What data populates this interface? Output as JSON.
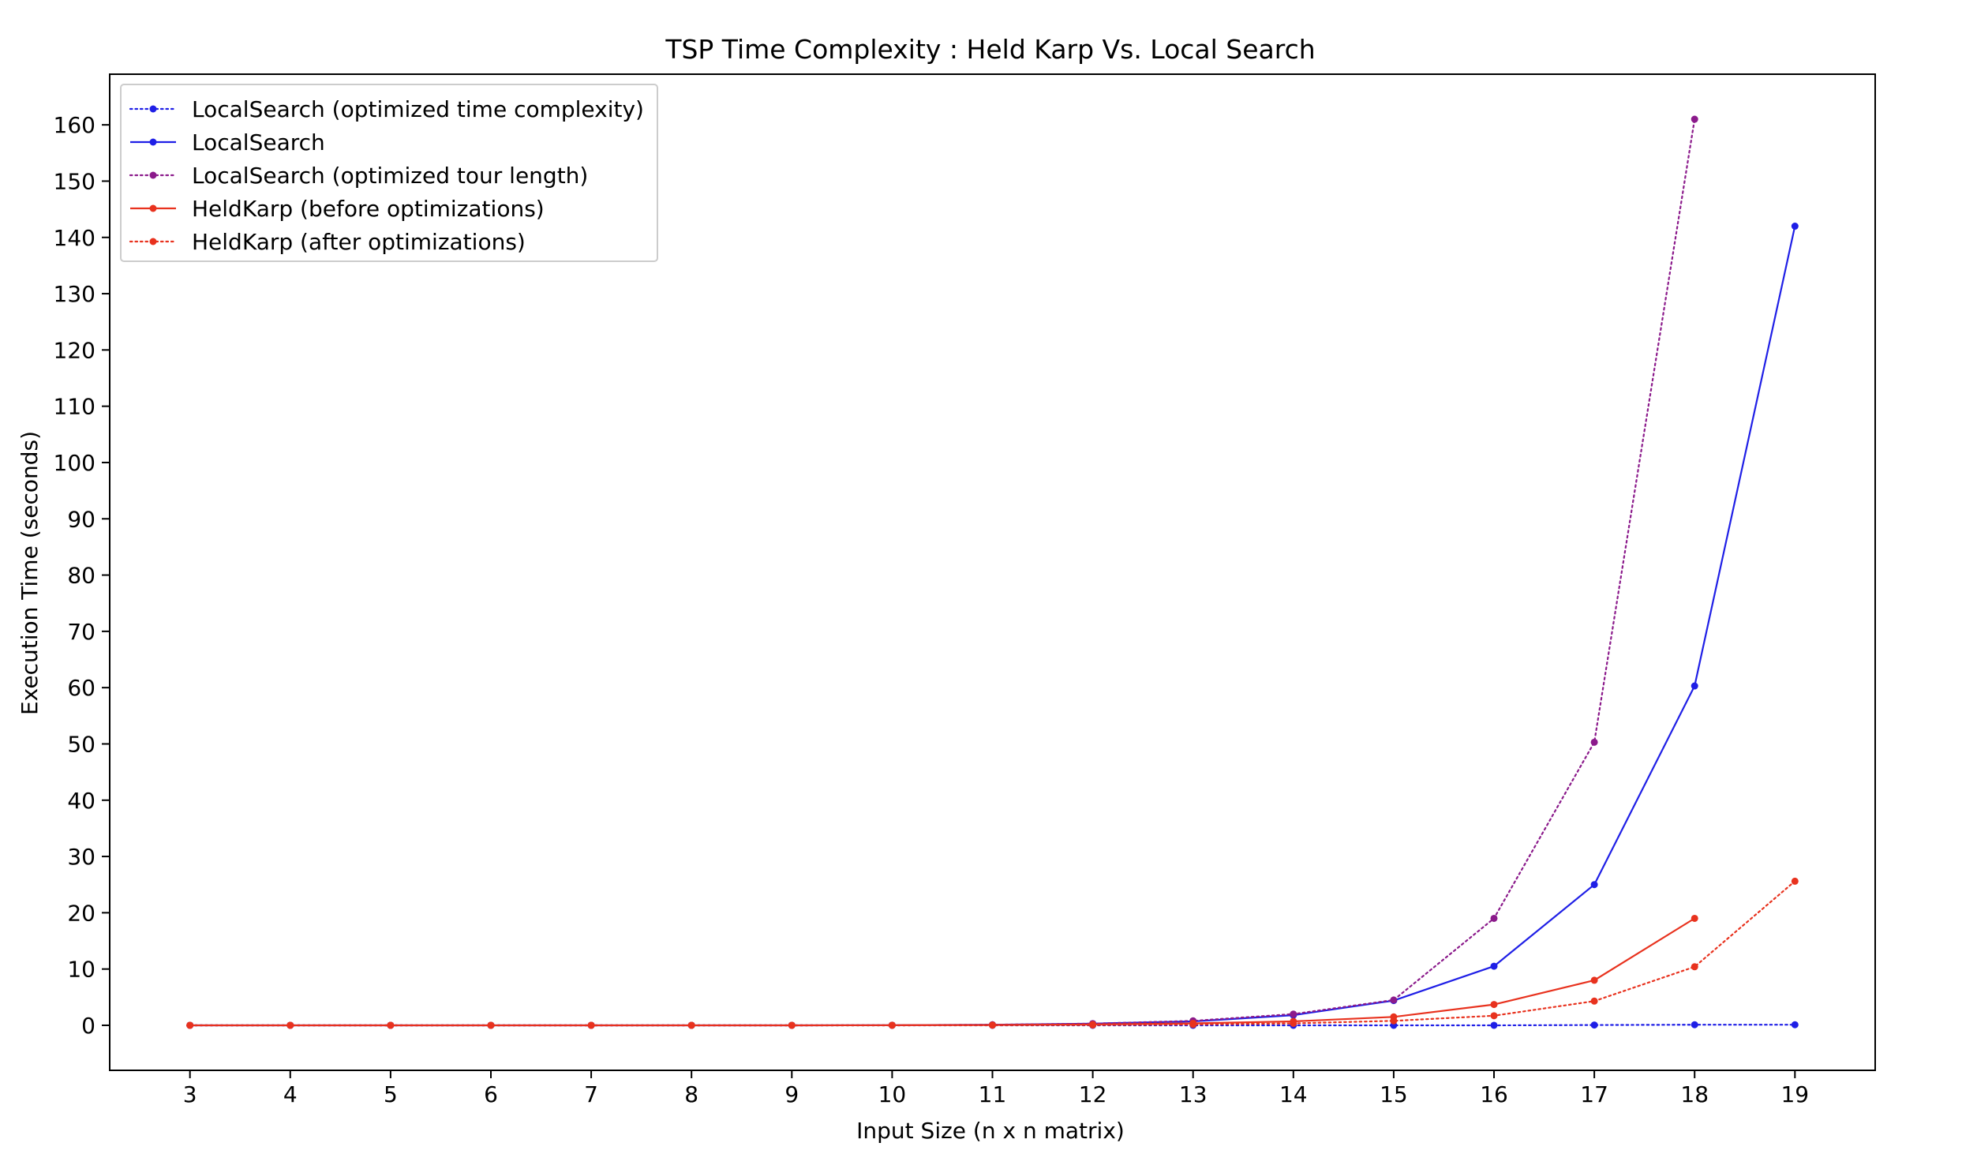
{
  "chart_data": {
    "type": "line",
    "title": "TSP Time Complexity : Held Karp Vs. Local Search",
    "xlabel": "Input Size (n x n matrix)",
    "ylabel": "Execution Time (seconds)",
    "x": [
      3,
      4,
      5,
      6,
      7,
      8,
      9,
      10,
      11,
      12,
      13,
      14,
      15,
      16,
      17,
      18,
      19
    ],
    "x_ticks": [
      "3",
      "4",
      "5",
      "6",
      "7",
      "8",
      "9",
      "10",
      "11",
      "12",
      "13",
      "14",
      "15",
      "16",
      "17",
      "18",
      "19"
    ],
    "xlim": [
      2.2,
      19.8
    ],
    "ylim": [
      -8,
      169
    ],
    "y_ticks": [
      0,
      10,
      20,
      30,
      40,
      50,
      60,
      70,
      80,
      90,
      100,
      110,
      120,
      130,
      140,
      150,
      160
    ],
    "y_tick_labels": [
      "0",
      "10",
      "20",
      "30",
      "40",
      "50",
      "60",
      "70",
      "80",
      "90",
      "100",
      "110",
      "120",
      "130",
      "140",
      "150",
      "160"
    ],
    "grid": false,
    "legend_position": "top-left",
    "series": [
      {
        "name": "LocalSearch (optimized time complexity)",
        "color": "#1f1fe6",
        "style": "dotted",
        "x": [
          3,
          4,
          5,
          6,
          7,
          8,
          9,
          10,
          11,
          12,
          13,
          14,
          15,
          16,
          17,
          18,
          19
        ],
        "values": [
          0,
          0,
          0,
          0,
          0,
          0,
          0,
          0,
          0,
          0,
          0,
          0,
          0,
          0,
          0.05,
          0.1,
          0.1
        ]
      },
      {
        "name": "LocalSearch",
        "color": "#1f1fe6",
        "style": "solid",
        "x": [
          3,
          4,
          5,
          6,
          7,
          8,
          9,
          10,
          11,
          12,
          13,
          14,
          15,
          16,
          17,
          18,
          19
        ],
        "values": [
          0,
          0,
          0,
          0,
          0,
          0,
          0,
          0.02,
          0.1,
          0.3,
          0.7,
          1.8,
          4.4,
          10.5,
          25,
          60.3,
          142
        ]
      },
      {
        "name": "LocalSearch (optimized tour length)",
        "color": "#8b1a8b",
        "style": "dotted",
        "x": [
          3,
          4,
          5,
          6,
          7,
          8,
          9,
          10,
          11,
          12,
          13,
          14,
          15,
          16,
          17,
          18
        ],
        "values": [
          0,
          0,
          0,
          0,
          0,
          0,
          0,
          0.02,
          0.1,
          0.3,
          0.8,
          2.0,
          4.5,
          19,
          50.3,
          161
        ]
      },
      {
        "name": "HeldKarp (before optimizations)",
        "color": "#e8321e",
        "style": "solid",
        "x": [
          3,
          4,
          5,
          6,
          7,
          8,
          9,
          10,
          11,
          12,
          13,
          14,
          15,
          16,
          17,
          18
        ],
        "values": [
          0,
          0,
          0,
          0,
          0,
          0,
          0,
          0.02,
          0.05,
          0.15,
          0.35,
          0.7,
          1.5,
          3.7,
          8,
          19
        ]
      },
      {
        "name": "HeldKarp (after optimizations)",
        "color": "#e8321e",
        "style": "dotted",
        "x": [
          3,
          4,
          5,
          6,
          7,
          8,
          9,
          10,
          11,
          12,
          13,
          14,
          15,
          16,
          17,
          18,
          19
        ],
        "values": [
          0,
          0,
          0,
          0,
          0,
          0,
          0,
          0,
          0.02,
          0.05,
          0.15,
          0.35,
          0.8,
          1.7,
          4.3,
          10.4,
          25.6
        ]
      }
    ]
  }
}
